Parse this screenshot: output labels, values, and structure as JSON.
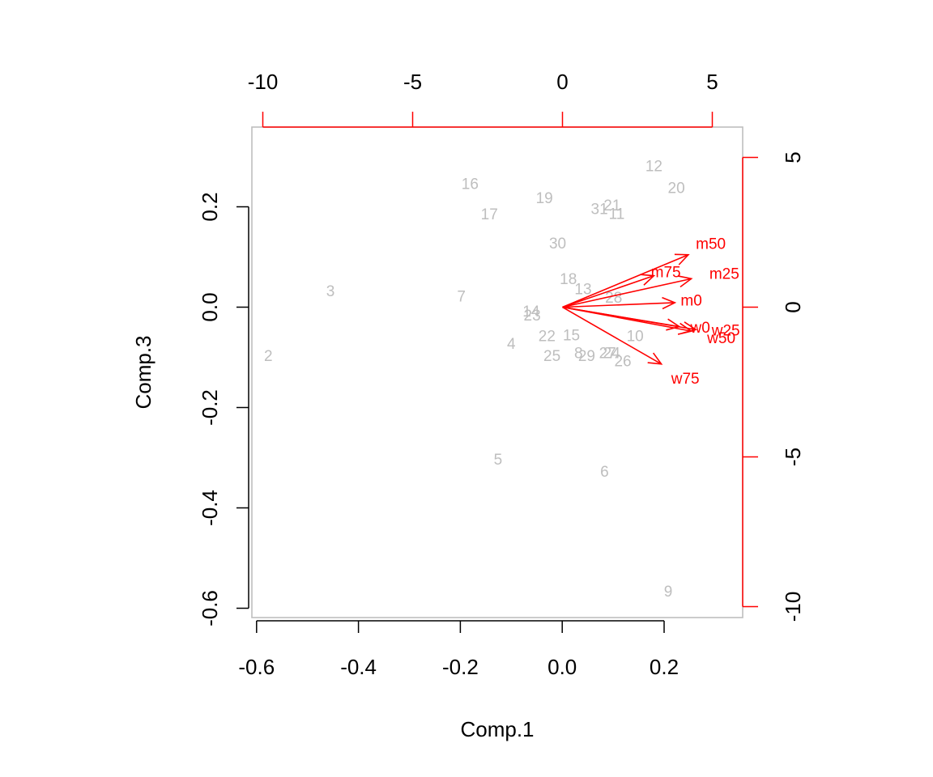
{
  "chart_data": {
    "type": "biplot",
    "xlabel": "Comp.1",
    "ylabel": "Comp.3",
    "xlim": [
      -0.6,
      0.35
    ],
    "ylim": [
      -0.6,
      0.35
    ],
    "x_ticks": [
      "-0.6",
      "-0.4",
      "-0.2",
      "0.0",
      "0.2"
    ],
    "y_ticks": [
      "-0.6",
      "-0.4",
      "-0.2",
      "0.0",
      "0.2"
    ],
    "secondary_x_ticks": [
      "-10",
      "-5",
      "0",
      "5"
    ],
    "secondary_y_ticks": [
      "-10",
      "-5",
      "0",
      "5"
    ],
    "secondary_lim": [
      -10,
      6
    ],
    "colors": {
      "points": "#bebebe",
      "loadings": "#ff0000",
      "box": "#bebebe"
    },
    "points": [
      {
        "label": "2",
        "x": -0.577,
        "y": -0.098
      },
      {
        "label": "3",
        "x": -0.455,
        "y": 0.031
      },
      {
        "label": "7",
        "x": -0.198,
        "y": 0.02
      },
      {
        "label": "16",
        "x": -0.181,
        "y": 0.244
      },
      {
        "label": "17",
        "x": -0.143,
        "y": 0.184
      },
      {
        "label": "5",
        "x": -0.126,
        "y": -0.305
      },
      {
        "label": "4",
        "x": -0.1,
        "y": -0.074
      },
      {
        "label": "14",
        "x": -0.061,
        "y": -0.01
      },
      {
        "label": "23",
        "x": -0.059,
        "y": -0.018
      },
      {
        "label": "22",
        "x": -0.03,
        "y": -0.059
      },
      {
        "label": "19",
        "x": -0.035,
        "y": 0.216
      },
      {
        "label": "25",
        "x": -0.02,
        "y": -0.098
      },
      {
        "label": "30",
        "x": -0.009,
        "y": 0.126
      },
      {
        "label": "15",
        "x": 0.018,
        "y": -0.057
      },
      {
        "label": "18",
        "x": 0.012,
        "y": 0.055
      },
      {
        "label": "8",
        "x": 0.032,
        "y": -0.093
      },
      {
        "label": "13",
        "x": 0.041,
        "y": 0.035
      },
      {
        "label": "29",
        "x": 0.048,
        "y": -0.098
      },
      {
        "label": "27",
        "x": 0.089,
        "y": -0.093
      },
      {
        "label": "24",
        "x": 0.097,
        "y": -0.093
      },
      {
        "label": "28",
        "x": 0.101,
        "y": 0.018
      },
      {
        "label": "26",
        "x": 0.119,
        "y": -0.109
      },
      {
        "label": "6",
        "x": 0.083,
        "y": -0.329
      },
      {
        "label": "31",
        "x": 0.073,
        "y": 0.194
      },
      {
        "label": "21",
        "x": 0.098,
        "y": 0.202
      },
      {
        "label": "11",
        "x": 0.107,
        "y": 0.185
      },
      {
        "label": "10",
        "x": 0.143,
        "y": -0.059
      },
      {
        "label": "12",
        "x": 0.18,
        "y": 0.28
      },
      {
        "label": "20",
        "x": 0.224,
        "y": 0.236
      },
      {
        "label": "9",
        "x": 0.208,
        "y": -0.568
      }
    ],
    "loadings": [
      {
        "label": "m50",
        "x": 4.2,
        "y": 1.75,
        "lx": 4.95,
        "ly": 2.1
      },
      {
        "label": "m75",
        "x": 3.05,
        "y": 1.05,
        "lx": 3.45,
        "ly": 1.15
      },
      {
        "label": "m25",
        "x": 4.3,
        "y": 0.95,
        "lx": 5.4,
        "ly": 1.1
      },
      {
        "label": "m0",
        "x": 3.75,
        "y": 0.15,
        "lx": 4.3,
        "ly": 0.2
      },
      {
        "label": "w0",
        "x": 3.9,
        "y": -0.65,
        "lx": 4.6,
        "ly": -0.7
      },
      {
        "label": "w25",
        "x": 4.45,
        "y": -0.75,
        "lx": 5.45,
        "ly": -0.8
      },
      {
        "label": "w50",
        "x": 4.3,
        "y": -0.8,
        "lx": 5.3,
        "ly": -1.05
      },
      {
        "label": "w75",
        "x": 3.3,
        "y": -1.9,
        "lx": 4.1,
        "ly": -2.4
      }
    ]
  }
}
